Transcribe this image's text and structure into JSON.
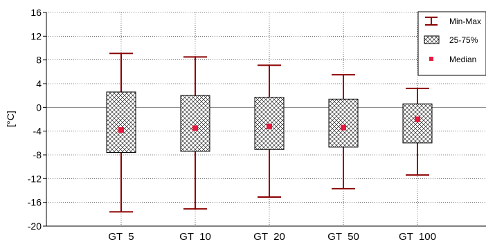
{
  "chart_data": {
    "type": "box",
    "ylabel": "[°C]",
    "ylim": [
      -20,
      16
    ],
    "yticks": [
      16,
      12,
      8,
      4,
      0,
      -4,
      -8,
      -12,
      -16,
      -20
    ],
    "grid": true,
    "legend_position": "top-right",
    "categories": [
      "GT  5",
      "GT  10",
      "GT  20",
      "GT  50",
      "GT  100"
    ],
    "boxes": [
      {
        "min": -17.6,
        "q1": -7.6,
        "median": -3.8,
        "q3": 2.6,
        "max": 9.1
      },
      {
        "min": -17.1,
        "q1": -7.4,
        "median": -3.5,
        "q3": 2.0,
        "max": 8.5
      },
      {
        "min": -15.1,
        "q1": -7.1,
        "median": -3.2,
        "q3": 1.7,
        "max": 7.1
      },
      {
        "min": -13.7,
        "q1": -6.7,
        "median": -3.4,
        "q3": 1.4,
        "max": 5.5
      },
      {
        "min": -11.4,
        "q1": -6.0,
        "median": -2.0,
        "q3": 0.6,
        "max": 3.2
      }
    ],
    "legend": {
      "minmax": "Min-Max",
      "iqr": "25-75%",
      "median": "Median"
    },
    "colors": {
      "whisker": "#8b0000",
      "box_edge": "#000000",
      "median": "#e8173c",
      "zero_line": "#808080"
    }
  }
}
